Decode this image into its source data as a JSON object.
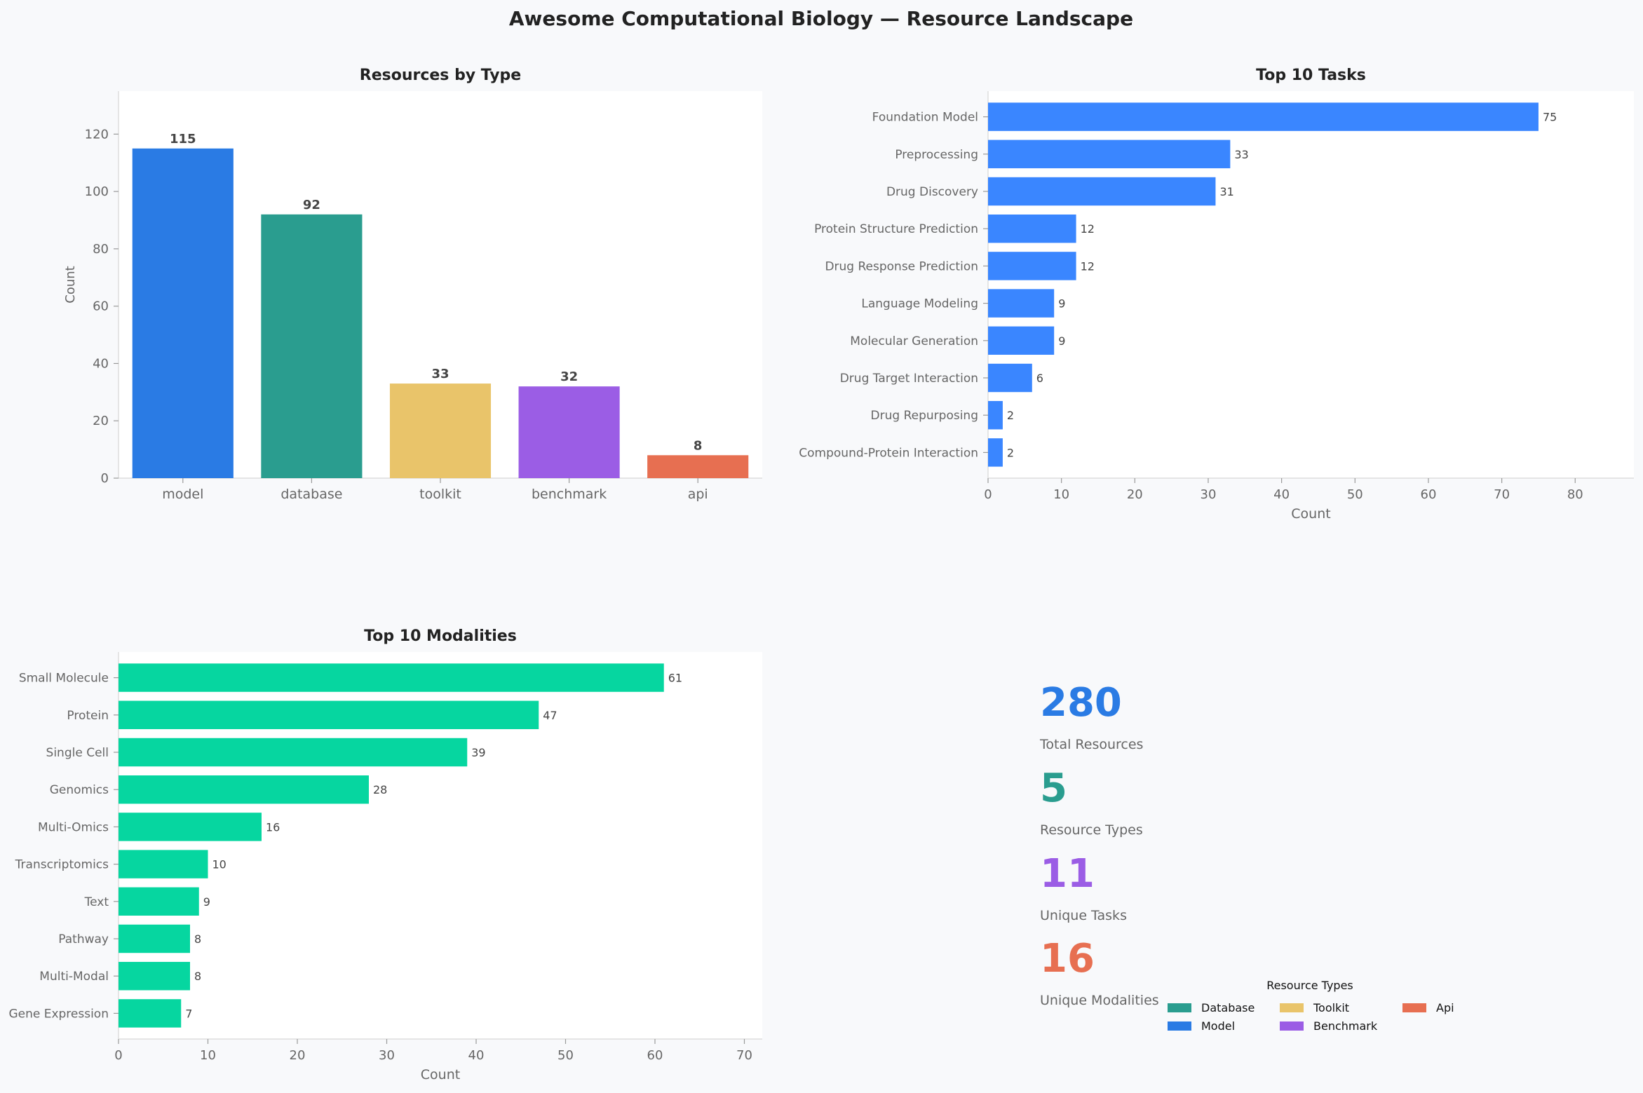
{
  "title": "Awesome Computational Biology — Resource Landscape",
  "colors": {
    "model": "#2a7be4",
    "database": "#2a9d8f",
    "toolkit": "#e9c46a",
    "benchmark": "#9b5de5",
    "api": "#e76f51",
    "task_bar": "#3a86ff",
    "modality_bar": "#06d6a0",
    "text_dark": "#222222",
    "text_muted": "#666666",
    "axis": "#dddddd"
  },
  "chart_data": [
    {
      "type": "bar",
      "title": "Resources by Type",
      "xlabel": "",
      "ylabel": "Count",
      "categories": [
        "model",
        "database",
        "toolkit",
        "benchmark",
        "api"
      ],
      "values": [
        115,
        92,
        33,
        32,
        8
      ],
      "ylim": [
        0,
        135
      ],
      "yticks": [
        0,
        20,
        40,
        60,
        80,
        100,
        120
      ],
      "grid": false
    },
    {
      "type": "bar",
      "orientation": "horizontal",
      "title": "Top 10 Tasks",
      "xlabel": "Count",
      "ylabel": "",
      "categories": [
        "Foundation Model",
        "Preprocessing",
        "Drug Discovery",
        "Protein Structure Prediction",
        "Drug Response Prediction",
        "Language Modeling",
        "Molecular Generation",
        "Drug Target Interaction",
        "Drug Repurposing",
        "Compound-Protein Interaction"
      ],
      "values": [
        75,
        33,
        31,
        12,
        12,
        9,
        9,
        6,
        2,
        2
      ],
      "xlim": [
        0,
        88
      ],
      "xticks": [
        0,
        10,
        20,
        30,
        40,
        50,
        60,
        70,
        80
      ],
      "grid": false
    },
    {
      "type": "bar",
      "orientation": "horizontal",
      "title": "Top 10 Modalities",
      "xlabel": "Count",
      "ylabel": "",
      "categories": [
        "Small Molecule",
        "Protein",
        "Single Cell",
        "Genomics",
        "Multi-Omics",
        "Transcriptomics",
        "Text",
        "Pathway",
        "Multi-Modal",
        "Gene Expression"
      ],
      "values": [
        61,
        47,
        39,
        28,
        16,
        10,
        9,
        8,
        8,
        7
      ],
      "xlim": [
        0,
        72
      ],
      "xticks": [
        0,
        10,
        20,
        30,
        40,
        50,
        60,
        70
      ],
      "grid": false
    }
  ],
  "stats": [
    {
      "value": "280",
      "label": "Total Resources",
      "color": "#2a7be4"
    },
    {
      "value": "5",
      "label": "Resource Types",
      "color": "#2a9d8f"
    },
    {
      "value": "11",
      "label": "Unique Tasks",
      "color": "#9b5de5"
    },
    {
      "value": "16",
      "label": "Unique Modalities",
      "color": "#e76f51"
    }
  ],
  "legend": {
    "title": "Resource Types",
    "placement": "bottom-right",
    "items": [
      {
        "label": "Database",
        "color": "#2a9d8f"
      },
      {
        "label": "Model",
        "color": "#2a7be4"
      },
      {
        "label": "Toolkit",
        "color": "#e9c46a"
      },
      {
        "label": "Benchmark",
        "color": "#9b5de5"
      },
      {
        "label": "Api",
        "color": "#e76f51"
      }
    ]
  }
}
